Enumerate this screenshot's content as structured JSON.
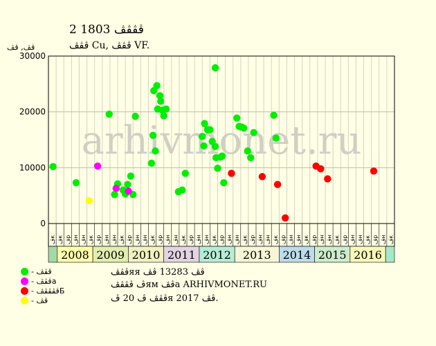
{
  "header": {
    "title": "2 ڤڤڤڤ 1803",
    "subtitle": "ڤڤڤ Cu, ڤڤڤ VF.",
    "y_unit": "ڤڤ, ڤڤ"
  },
  "legend": [
    {
      "label": "- ڤڤڤ",
      "color": "#00ee00"
    },
    {
      "label": "- ڤڤڤa",
      "color": "#ff00ff"
    },
    {
      "label": "- ڤڤڤڤڤБ",
      "color": "#ff0000"
    },
    {
      "label": "- ڤڤ",
      "color": "#ffff00"
    }
  ],
  "info": {
    "line1": "ڤڤڤяя ڤڤ 13283 ڤڤ",
    "line2": "ڤ ڤڤڤڤям ڤڤa ARHIVMONET.RU",
    "line3": "ڤڤڤ ڤ 20 ڤя 2017 ڤڤ."
  },
  "watermark": "arhivmonet.ru",
  "chart_data": {
    "type": "scatter",
    "ylim": [
      0,
      30000
    ],
    "yticks": [
      0,
      10000,
      20000,
      30000
    ],
    "x_slots": 45,
    "month_labels": [
      "ڤк",
      "ڤк",
      "ڤр",
      "ڤн",
      "ڤн",
      "ڤк",
      "ڤр",
      "ڤн",
      "ڤн",
      "ڤк",
      "ڤр",
      "ڤн",
      "ڤн",
      "ڤк",
      "ڤр",
      "ڤн",
      "ڤн",
      "ڤк",
      "ڤр",
      "ڤн",
      "ڤн",
      "ڤк",
      "ڤр",
      "ڤн",
      "ڤн",
      "ڤк",
      "ڤр",
      "ڤн",
      "ڤн",
      "ڤк",
      "ڤр",
      "ڤн",
      "ڤн",
      "ڤк",
      "ڤр",
      "ڤн",
      "ڤн",
      "ڤк",
      "ڤр",
      "ڤн",
      "ڤн",
      "ڤк",
      "ڤр",
      "ڤн",
      "ڤк"
    ],
    "years": [
      {
        "label": "",
        "start": 0,
        "end": 1,
        "color": "#a6d8a6"
      },
      {
        "label": "2008",
        "start": 1,
        "end": 5,
        "color": "#ffffaa"
      },
      {
        "label": "2009",
        "start": 5,
        "end": 9,
        "color": "#e0eeb0"
      },
      {
        "label": "2010",
        "start": 9,
        "end": 13,
        "color": "#f0f0c0"
      },
      {
        "label": "2011",
        "start": 13,
        "end": 17,
        "color": "#e2d4e2"
      },
      {
        "label": "2012",
        "start": 17,
        "end": 21,
        "color": "#b6ecd6"
      },
      {
        "label": "2013",
        "start": 21,
        "end": 26,
        "color": "#f6f6d6"
      },
      {
        "label": "2014",
        "start": 26,
        "end": 30,
        "color": "#bcdcec"
      },
      {
        "label": "2015",
        "start": 30,
        "end": 34,
        "color": "#cceccc"
      },
      {
        "label": "2016",
        "start": 34,
        "end": 38,
        "color": "#f8f8b8"
      },
      {
        "label": "",
        "start": 38,
        "end": 39,
        "color": "#a6e8c6"
      }
    ],
    "series": [
      {
        "color": "#00ee00",
        "points": [
          [
            0.6,
            10200
          ],
          [
            3.6,
            7300
          ],
          [
            7.9,
            19600
          ],
          [
            8.6,
            5200
          ],
          [
            9.0,
            7100
          ],
          [
            9.7,
            6000
          ],
          [
            10.0,
            5300
          ],
          [
            10.3,
            7000
          ],
          [
            10.7,
            8500
          ],
          [
            11.0,
            5200
          ],
          [
            11.3,
            19200
          ],
          [
            13.4,
            10800
          ],
          [
            13.6,
            15800
          ],
          [
            13.9,
            13000
          ],
          [
            13.7,
            23800
          ],
          [
            14.1,
            24700
          ],
          [
            14.2,
            20500
          ],
          [
            14.5,
            22900
          ],
          [
            14.6,
            21900
          ],
          [
            14.8,
            20300
          ],
          [
            15.0,
            19300
          ],
          [
            15.3,
            20500
          ],
          [
            16.9,
            5700
          ],
          [
            17.4,
            6000
          ],
          [
            17.8,
            9000
          ],
          [
            20.0,
            15600
          ],
          [
            20.2,
            13900
          ],
          [
            20.3,
            17900
          ],
          [
            20.7,
            16800
          ],
          [
            21.0,
            16800
          ],
          [
            21.3,
            14700
          ],
          [
            21.7,
            13800
          ],
          [
            21.7,
            27900
          ],
          [
            21.8,
            11800
          ],
          [
            22.0,
            9900
          ],
          [
            22.4,
            11900
          ],
          [
            22.6,
            12100
          ],
          [
            22.8,
            7300
          ],
          [
            24.5,
            18900
          ],
          [
            24.8,
            17400
          ],
          [
            25.1,
            17300
          ],
          [
            25.4,
            17100
          ],
          [
            25.9,
            13000
          ],
          [
            26.3,
            11800
          ],
          [
            26.7,
            16300
          ],
          [
            29.3,
            19400
          ],
          [
            29.6,
            15300
          ]
        ]
      },
      {
        "color": "#ff00ff",
        "points": [
          [
            6.4,
            10300
          ],
          [
            8.8,
            6300
          ],
          [
            10.4,
            5800
          ]
        ]
      },
      {
        "color": "#ff0000",
        "points": [
          [
            23.8,
            9000
          ],
          [
            27.8,
            8400
          ],
          [
            29.8,
            7000
          ],
          [
            30.8,
            1000
          ],
          [
            34.8,
            10300
          ],
          [
            35.4,
            9800
          ],
          [
            36.3,
            8000
          ],
          [
            42.3,
            9400
          ]
        ]
      },
      {
        "color": "#ffff00",
        "points": [
          [
            5.3,
            4100
          ]
        ]
      }
    ]
  }
}
